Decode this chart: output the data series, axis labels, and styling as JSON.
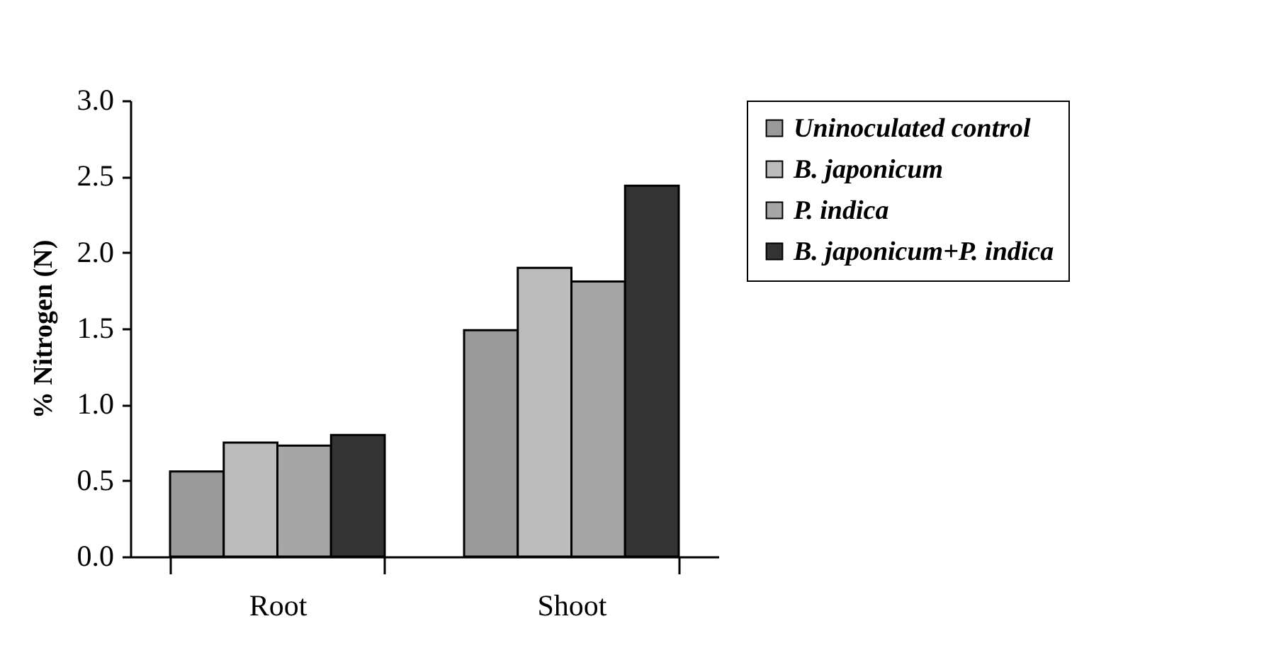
{
  "chart_data": {
    "type": "bar",
    "ylabel": "% Nitrogen (N)",
    "categories": [
      "Root",
      "Shoot"
    ],
    "series": [
      {
        "name": "Uninoculated control",
        "color": "#9a9a9a",
        "values": [
          0.56,
          1.49
        ]
      },
      {
        "name": "B. japonicum",
        "color": "#bcbcbc",
        "values": [
          0.75,
          1.9
        ]
      },
      {
        "name": "P. indica",
        "color": "#a6a6a6",
        "values": [
          0.73,
          1.81
        ]
      },
      {
        "name": "B. japonicum+P. indica",
        "color": "#333333",
        "values": [
          0.8,
          2.44
        ]
      }
    ],
    "ylim": [
      0,
      3
    ],
    "yticks": [
      {
        "value": 0,
        "label": "0.0"
      },
      {
        "value": 0.5,
        "label": "0.5"
      },
      {
        "value": 1,
        "label": "1.0"
      },
      {
        "value": 1.5,
        "label": "1.5"
      },
      {
        "value": 2,
        "label": "2.0"
      },
      {
        "value": 2.5,
        "label": "2.5"
      },
      {
        "value": 3,
        "label": "3.0"
      }
    ],
    "grid": false,
    "legend": "right"
  }
}
